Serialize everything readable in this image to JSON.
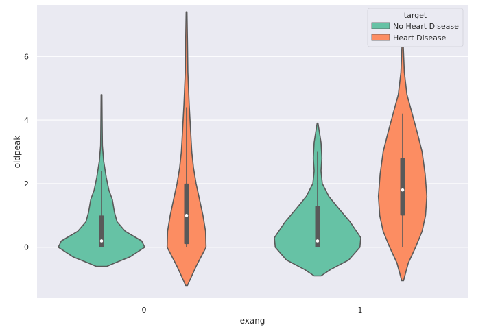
{
  "chart_data": {
    "type": "violin",
    "xlabel": "exang",
    "ylabel": "oldpeak",
    "categories": [
      "0",
      "1"
    ],
    "ylim": [
      -1.6,
      7.6
    ],
    "y_ticks": [
      0,
      2,
      4,
      6
    ],
    "grid": true,
    "legend": {
      "title": "target",
      "position": "top-right",
      "entries": [
        "No Heart Disease",
        "Heart Disease"
      ]
    },
    "series": [
      {
        "name": "No Heart Disease",
        "color": "#66c2a5",
        "groups": [
          {
            "category": "0",
            "min": 0,
            "q1": 0,
            "median": 0.2,
            "q3": 1.0,
            "whisker_high": 2.4,
            "max": 4.8,
            "profile": [
              [
                -0.6,
                0.12
              ],
              [
                -0.5,
                0.3
              ],
              [
                -0.3,
                0.66
              ],
              [
                0,
                1.0
              ],
              [
                0.2,
                0.93
              ],
              [
                0.5,
                0.55
              ],
              [
                0.8,
                0.36
              ],
              [
                1.1,
                0.3
              ],
              [
                1.5,
                0.25
              ],
              [
                1.8,
                0.17
              ],
              [
                2.2,
                0.11
              ],
              [
                2.7,
                0.05
              ],
              [
                3.2,
                0.02
              ],
              [
                4.0,
                0.015
              ],
              [
                4.8,
                0.01
              ]
            ]
          },
          {
            "category": "1",
            "min": 0,
            "q1": 0,
            "median": 0.2,
            "q3": 1.3,
            "whisker_high": 3.0,
            "max": 3.9,
            "profile": [
              [
                -0.9,
                0.08
              ],
              [
                -0.7,
                0.3
              ],
              [
                -0.4,
                0.72
              ],
              [
                0,
                0.98
              ],
              [
                0.3,
                1.0
              ],
              [
                0.8,
                0.75
              ],
              [
                1.2,
                0.5
              ],
              [
                1.6,
                0.26
              ],
              [
                2.0,
                0.11
              ],
              [
                2.4,
                0.08
              ],
              [
                2.8,
                0.1
              ],
              [
                3.3,
                0.08
              ],
              [
                3.9,
                0.01
              ]
            ]
          }
        ]
      },
      {
        "name": "Heart Disease",
        "color": "#fc8d62",
        "groups": [
          {
            "category": "0",
            "min": 0,
            "q1": 0.1,
            "median": 1.0,
            "q3": 2.0,
            "whisker_high": 4.4,
            "max": 7.4,
            "profile": [
              [
                -1.2,
                0.02
              ],
              [
                -0.6,
                0.22
              ],
              [
                0,
                0.45
              ],
              [
                0.5,
                0.44
              ],
              [
                1.0,
                0.38
              ],
              [
                1.5,
                0.3
              ],
              [
                2.0,
                0.22
              ],
              [
                2.5,
                0.16
              ],
              [
                3.0,
                0.12
              ],
              [
                3.5,
                0.1
              ],
              [
                4.5,
                0.06
              ],
              [
                5.5,
                0.03
              ],
              [
                6.5,
                0.02
              ],
              [
                7.4,
                0.01
              ]
            ]
          },
          {
            "category": "1",
            "min": 0,
            "q1": 1.0,
            "median": 1.8,
            "q3": 2.8,
            "whisker_high": 4.2,
            "max": 6.5,
            "profile": [
              [
                -1.05,
                0.02
              ],
              [
                -0.5,
                0.13
              ],
              [
                0,
                0.3
              ],
              [
                0.5,
                0.45
              ],
              [
                1.0,
                0.53
              ],
              [
                1.6,
                0.56
              ],
              [
                2.3,
                0.52
              ],
              [
                3.0,
                0.45
              ],
              [
                3.6,
                0.34
              ],
              [
                4.2,
                0.22
              ],
              [
                4.8,
                0.1
              ],
              [
                5.5,
                0.04
              ],
              [
                6.5,
                0.01
              ]
            ]
          }
        ]
      }
    ]
  }
}
